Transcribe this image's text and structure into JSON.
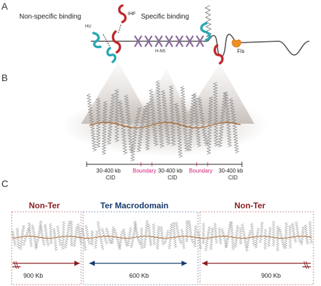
{
  "panels": {
    "a": {
      "letter": "A",
      "nonspecific_label": "Non-specific binding",
      "specific_label": "Specific binding",
      "ihf_label": "IHF",
      "hu_label": "HU",
      "hns_label": "H-NS",
      "fis_label": "Fis"
    },
    "b": {
      "letter": "B",
      "scale_ticks": [
        {
          "line1": "30-400 kb",
          "line2": "CID"
        },
        {
          "line1": "Boundary",
          "line2": ""
        },
        {
          "line1": "30-400 kb",
          "line2": "CID"
        },
        {
          "line1": "Boundary",
          "line2": ""
        },
        {
          "line1": "30-400 kb",
          "line2": "CID"
        }
      ]
    },
    "c": {
      "letter": "C",
      "regions": [
        {
          "title": "Non-Ter",
          "length": "900 Kb"
        },
        {
          "title": "Ter Macrodomain",
          "length": "600 Kb"
        },
        {
          "title": "Non-Ter",
          "length": "900 Kb"
        }
      ]
    }
  },
  "colors": {
    "dna": "#9a9a9a",
    "ihf": "#c0282a",
    "hu": "#2aa7b3",
    "hns": "#8a6c9c",
    "fis": "#f0901e",
    "boundary": "#d01b7a",
    "nonter": "#8b1c1f",
    "ter": "#173a6b",
    "gridline": "#b6b6b6"
  }
}
